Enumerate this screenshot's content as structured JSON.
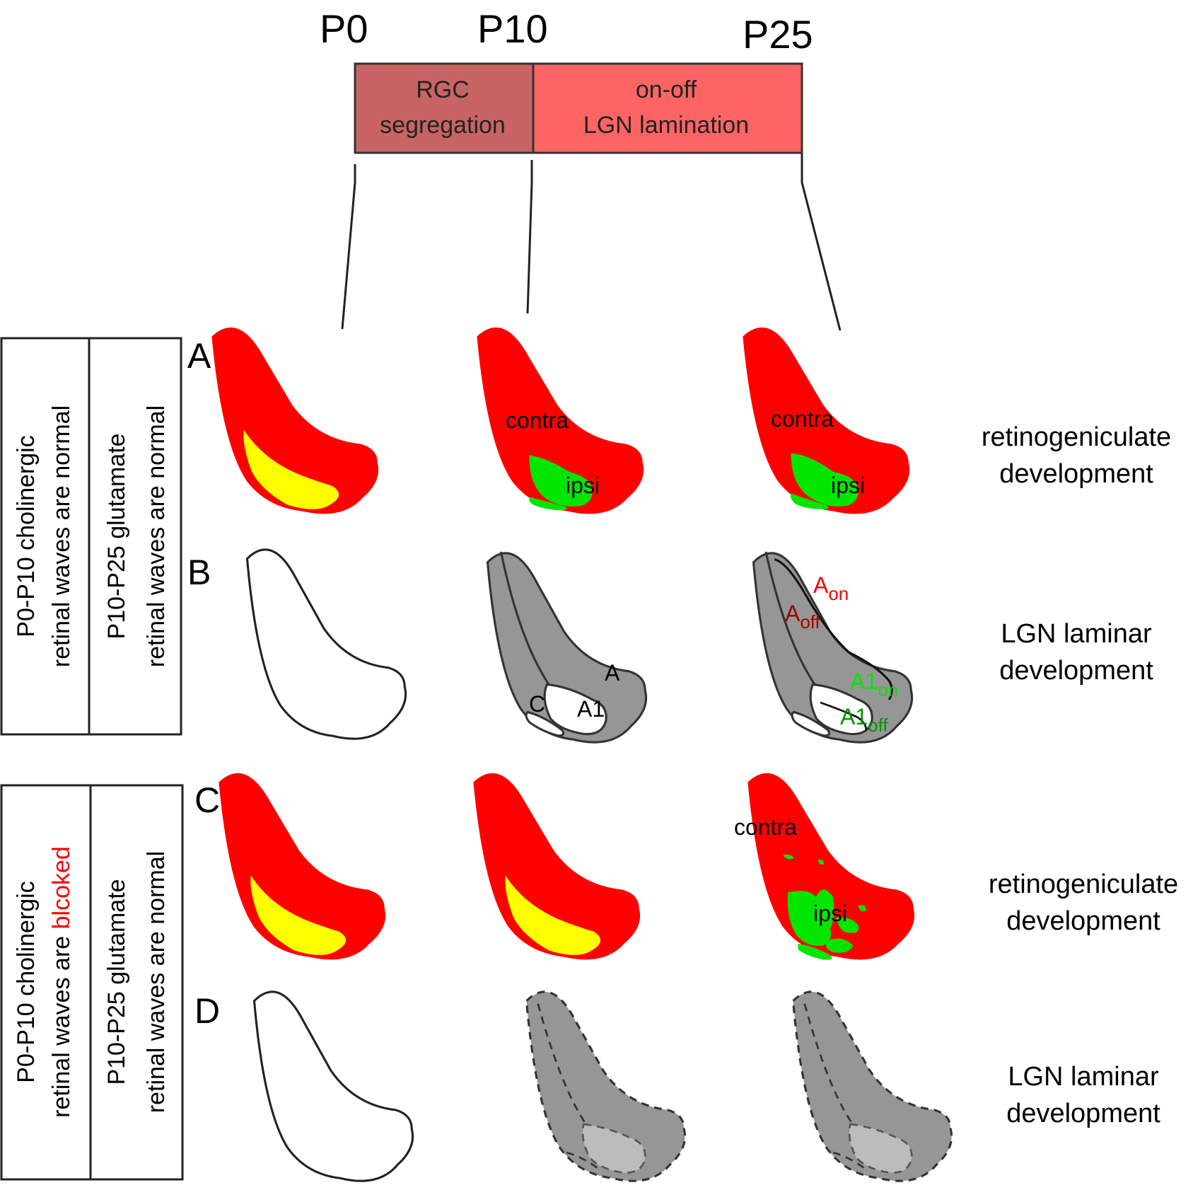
{
  "timeline": {
    "ticks": {
      "p0": "P0",
      "p10": "P10",
      "p25": "P25"
    },
    "phases": [
      {
        "line1": "RGC",
        "line2": "segregation",
        "color": "#c86464"
      },
      {
        "line1": "on-off",
        "line2": "LGN lamination",
        "color": "#ff6464"
      }
    ]
  },
  "panels": {
    "a": "A",
    "b": "B",
    "c": "C",
    "d": "D"
  },
  "conditions": {
    "normal": {
      "cholinergic_line1": "P0-P10 cholinergic",
      "cholinergic_line2": "retinal waves are normal",
      "glutamate_line1": "P10-P25 glutamate",
      "glutamate_line2": "retinal waves are normal"
    },
    "blocked": {
      "cholinergic_line1": "P0-P10 cholinergic",
      "cholinergic_line2_prefix": "retinal waves are ",
      "cholinergic_line2_emph": "blcoked",
      "glutamate_line1": "P10-P25 glutamate",
      "glutamate_line2": "retinal waves are normal"
    }
  },
  "row_labels": {
    "retino_line1": "retinogeniculate",
    "retino_line2": "development",
    "laminar_line1": "LGN laminar",
    "laminar_line2": "development"
  },
  "labels": {
    "contra": "contra",
    "ipsi": "ipsi",
    "layer_a": "A",
    "layer_a1": "A1",
    "layer_c": "C",
    "a_on_base": "A",
    "a_on_sub": "on",
    "a_off_base": "A",
    "a_off_sub": "off",
    "a1_on_base": "A1",
    "a1_on_sub": "on",
    "a1_off_base": "A1",
    "a1_off_sub": "off"
  },
  "colors": {
    "contra_red": "#ff0000",
    "ipsi_green": "#00e600",
    "overlap_yellow": "#ffff00",
    "lgn_gray": "#969696",
    "on_label_red": "#ff0000",
    "off_label_darkred": "#a00000",
    "on_label_green": "#00e600",
    "off_label_green": "#009600",
    "blocked_word_red": "#ff0000"
  }
}
